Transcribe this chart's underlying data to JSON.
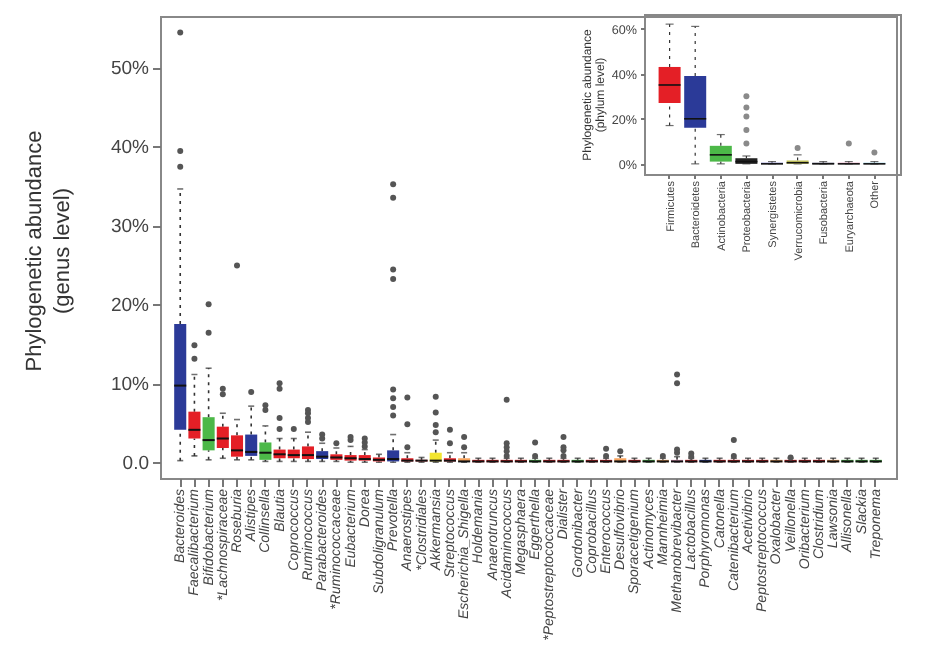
{
  "chart_data": [
    {
      "type": "box",
      "ylabel": "Phylogenetic abundance\n(genus level)",
      "categories": [
        "Bacteroides",
        "Faecalibacterium",
        "Bifidobacterium",
        "*Lachnospiraceae",
        "Roseburia",
        "Alistipes",
        "Collinsella",
        "Blautia",
        "Coprococcus",
        "Ruminococcus",
        "Parabacteroides",
        "*Ruminococcaceae",
        "Eubacterium",
        "Dorea",
        "Subdoligranulum",
        "Prevotella",
        "Anaerostipes",
        "*Clostridiales",
        "Akkermansia",
        "Streptococcus",
        "Escherichia_Shigella",
        "Holdemania",
        "Anaerotruncus",
        "Acidaminococcus",
        "Megasphaera",
        "Eggerthella",
        "*Peptostreptococcaceae",
        "Dialister",
        "Gordonibacter",
        "Coprobacillus",
        "Enterococcus",
        "Desulfovibrio",
        "Sporacetigenium",
        "Actinomyces",
        "Mannheimia",
        "Methanobrevibacter",
        "Lactobacillus",
        "Porphyromonas",
        "Catonella",
        "Catenibacterium",
        "Acetivibrio",
        "Peptostreptococcus",
        "Oxalobacter",
        "Veillonella",
        "Oribacterium",
        "Clostridium",
        "Lawsonia",
        "Allisonella",
        "Slackia",
        "Treponema"
      ],
      "colors": [
        "#2b3a98",
        "#e41f26",
        "#4cb848",
        "#e41f26",
        "#e41f26",
        "#2b3a98",
        "#4cb848",
        "#e41f26",
        "#e41f26",
        "#e41f26",
        "#2b3a98",
        "#e41f26",
        "#e41f26",
        "#e41f26",
        "#e41f26",
        "#2b3a98",
        "#e41f26",
        "#e41f26",
        "#f2e52e",
        "#e41f26",
        "#f7a35c",
        "#e41f26",
        "#e41f26",
        "#e41f26",
        "#e41f26",
        "#4cb848",
        "#e41f26",
        "#e41f26",
        "#4cb848",
        "#e41f26",
        "#e41f26",
        "#f7a35c",
        "#e41f26",
        "#4cb848",
        "#f7a35c",
        "#f2a0c4",
        "#e41f26",
        "#2b3a98",
        "#e41f26",
        "#e41f26",
        "#e41f26",
        "#e41f26",
        "#f7a35c",
        "#e41f26",
        "#e41f26",
        "#e41f26",
        "#f7a35c",
        "#4cb848",
        "#4cb848",
        "#4cb848"
      ],
      "boxes": [
        {
          "low": 0.2,
          "q1": 4.1,
          "median": 9.7,
          "q3": 17.5,
          "high": 34.6,
          "outliers": [
            37.4,
            39.4,
            54.4
          ]
        },
        {
          "low": 0.8,
          "q1": 3.0,
          "median": 4.1,
          "q3": 6.4,
          "high": 11.1,
          "outliers": [
            13.1,
            14.8
          ]
        },
        {
          "low": 0.3,
          "q1": 1.5,
          "median": 2.8,
          "q3": 5.7,
          "high": 11.9,
          "outliers": [
            16.4,
            20.0
          ]
        },
        {
          "low": 0.5,
          "q1": 1.8,
          "median": 3.0,
          "q3": 4.5,
          "high": 6.2,
          "outliers": [
            8.6,
            9.3
          ]
        },
        {
          "low": 0.3,
          "q1": 0.7,
          "median": 1.5,
          "q3": 3.4,
          "high": 5.4,
          "outliers": [
            24.9
          ]
        },
        {
          "low": 0.3,
          "q1": 0.8,
          "median": 1.3,
          "q3": 3.5,
          "high": 7.1,
          "outliers": [
            8.9
          ]
        },
        {
          "low": 0.1,
          "q1": 0.3,
          "median": 1.2,
          "q3": 2.5,
          "high": 4.6,
          "outliers": [
            6.6,
            7.2
          ]
        },
        {
          "low": 0.1,
          "q1": 0.5,
          "median": 1.0,
          "q3": 1.6,
          "high": 3.0,
          "outliers": [
            4.2,
            5.6,
            9.3,
            10.0
          ]
        },
        {
          "low": 0.1,
          "q1": 0.5,
          "median": 0.9,
          "q3": 1.6,
          "high": 3.0,
          "outliers": [
            4.2
          ]
        },
        {
          "low": 0.1,
          "q1": 0.4,
          "median": 0.9,
          "q3": 2.0,
          "high": 3.8,
          "outliers": [
            5.1,
            5.6,
            6.2,
            6.6
          ]
        },
        {
          "low": 0.1,
          "q1": 0.4,
          "median": 0.7,
          "q3": 1.4,
          "high": 2.4,
          "outliers": [
            3.0,
            3.5
          ]
        },
        {
          "low": 0.1,
          "q1": 0.3,
          "median": 0.6,
          "q3": 1.0,
          "high": 1.8,
          "outliers": [
            2.4
          ]
        },
        {
          "low": 0,
          "q1": 0.2,
          "median": 0.5,
          "q3": 0.9,
          "high": 2.0,
          "outliers": [
            2.8,
            3.2
          ]
        },
        {
          "low": 0,
          "q1": 0.2,
          "median": 0.4,
          "q3": 0.9,
          "high": 1.6,
          "outliers": [
            2.0,
            2.5,
            3.0
          ]
        },
        {
          "low": 0,
          "q1": 0.1,
          "median": 0.3,
          "q3": 0.6,
          "high": 1.0
        },
        {
          "low": 0,
          "q1": 0.1,
          "median": 0.4,
          "q3": 1.5,
          "high": 3.5,
          "outliers": [
            5.9,
            7.0,
            8.1,
            9.2,
            23.2,
            24.4,
            33.5,
            35.2
          ]
        },
        {
          "low": 0,
          "q1": 0.1,
          "median": 0.2,
          "q3": 0.5,
          "high": 1.2,
          "outliers": [
            1.9,
            4.8,
            8.2
          ]
        },
        {
          "low": 0,
          "q1": 0.1,
          "median": 0.2,
          "q3": 0.3,
          "high": 0.6
        },
        {
          "low": 0,
          "q1": 0.1,
          "median": 0.2,
          "q3": 1.2,
          "high": 2.8,
          "outliers": [
            3.8,
            4.7,
            6.3,
            8.3
          ]
        },
        {
          "low": 0,
          "q1": 0.1,
          "median": 0.2,
          "q3": 0.5,
          "high": 1.2,
          "outliers": [
            2.4,
            4.1
          ]
        },
        {
          "low": 0,
          "q1": 0.1,
          "median": 0.1,
          "q3": 0.5,
          "high": 1.2,
          "outliers": [
            1.9,
            3.2
          ]
        },
        {
          "low": 0,
          "q1": 0,
          "median": 0.1,
          "q3": 0.3,
          "high": 0.5
        },
        {
          "low": 0,
          "q1": 0,
          "median": 0.1,
          "q3": 0.3,
          "high": 0.5
        },
        {
          "low": 0,
          "q1": 0,
          "median": 0.1,
          "q3": 0.3,
          "high": 0.5,
          "outliers": [
            0.8,
            1.4,
            1.9,
            2.4,
            7.9
          ]
        },
        {
          "low": 0,
          "q1": 0,
          "median": 0.1,
          "q3": 0.3,
          "high": 0.5
        },
        {
          "low": 0,
          "q1": 0,
          "median": 0.1,
          "q3": 0.3,
          "high": 0.5,
          "outliers": [
            0.8,
            2.5
          ]
        },
        {
          "low": 0,
          "q1": 0,
          "median": 0.1,
          "q3": 0.3,
          "high": 0.5
        },
        {
          "low": 0,
          "q1": 0,
          "median": 0.1,
          "q3": 0.3,
          "high": 0.5,
          "outliers": [
            0.8,
            1.5,
            1.9,
            3.2
          ]
        },
        {
          "low": 0,
          "q1": 0,
          "median": 0.1,
          "q3": 0.3,
          "high": 0.5
        },
        {
          "low": 0,
          "q1": 0,
          "median": 0.1,
          "q3": 0.3,
          "high": 0.5
        },
        {
          "low": 0,
          "q1": 0,
          "median": 0.1,
          "q3": 0.3,
          "high": 0.5,
          "outliers": [
            0.8,
            1.7
          ]
        },
        {
          "low": 0,
          "q1": 0,
          "median": 0.1,
          "q3": 0.5,
          "high": 0.8,
          "outliers": [
            1.4
          ]
        },
        {
          "low": 0,
          "q1": 0,
          "median": 0.1,
          "q3": 0.3,
          "high": 0.5
        },
        {
          "low": 0,
          "q1": 0,
          "median": 0.1,
          "q3": 0.3,
          "high": 0.5
        },
        {
          "low": 0,
          "q1": 0,
          "median": 0.1,
          "q3": 0.3,
          "high": 0.5,
          "outliers": [
            0.8
          ]
        },
        {
          "low": 0,
          "q1": 0,
          "median": 0.1,
          "q3": 0.3,
          "high": 0.7,
          "outliers": [
            1.2,
            1.6,
            10.0,
            11.1
          ]
        },
        {
          "low": 0,
          "q1": 0,
          "median": 0.1,
          "q3": 0.3,
          "high": 0.5,
          "outliers": [
            0.7,
            1.1
          ]
        },
        {
          "low": 0,
          "q1": 0,
          "median": 0.1,
          "q3": 0.3,
          "high": 0.5
        },
        {
          "low": 0,
          "q1": 0,
          "median": 0.1,
          "q3": 0.3,
          "high": 0.5
        },
        {
          "low": 0,
          "q1": 0,
          "median": 0.1,
          "q3": 0.3,
          "high": 0.5,
          "outliers": [
            0.8,
            2.8
          ]
        },
        {
          "low": 0,
          "q1": 0,
          "median": 0.1,
          "q3": 0.3,
          "high": 0.5
        },
        {
          "low": 0,
          "q1": 0,
          "median": 0.1,
          "q3": 0.3,
          "high": 0.5
        },
        {
          "low": 0,
          "q1": 0,
          "median": 0.1,
          "q3": 0.3,
          "high": 0.5
        },
        {
          "low": 0,
          "q1": 0,
          "median": 0.1,
          "q3": 0.3,
          "high": 0.5,
          "outliers": [
            0.6
          ]
        },
        {
          "low": 0,
          "q1": 0,
          "median": 0.1,
          "q3": 0.3,
          "high": 0.5
        },
        {
          "low": 0,
          "q1": 0,
          "median": 0.1,
          "q3": 0.3,
          "high": 0.5
        },
        {
          "low": 0,
          "q1": 0,
          "median": 0.1,
          "q3": 0.3,
          "high": 0.5
        },
        {
          "low": 0,
          "q1": 0,
          "median": 0.1,
          "q3": 0.3,
          "high": 0.5
        },
        {
          "low": 0,
          "q1": 0,
          "median": 0.1,
          "q3": 0.3,
          "high": 0.5
        },
        {
          "low": 0,
          "q1": 0,
          "median": 0.1,
          "q3": 0.3,
          "high": 0.5
        }
      ],
      "ylim": [
        -2,
        56.5
      ],
      "yticks": [
        {
          "value": 0,
          "label": "0.0"
        },
        {
          "value": 10,
          "label": "10%"
        },
        {
          "value": 20,
          "label": "20%"
        },
        {
          "value": 30,
          "label": "30%"
        },
        {
          "value": 40,
          "label": "40%"
        },
        {
          "value": 50,
          "label": "50%"
        }
      ]
    },
    {
      "type": "box",
      "ylabel": "Phylogenetic abundance\n(phylum level)",
      "categories": [
        "Firmicutes",
        "Bacteroidetes",
        "Actinobacteria",
        "Proteobacteria",
        "Synergistetes",
        "Verrucomicrobia",
        "Fusobacteria",
        "Euryarchaeota",
        "Other"
      ],
      "colors": [
        "#e41f26",
        "#2b3a98",
        "#4cb848",
        "#222222",
        "#5b5bbd",
        "#c4c45a",
        "#3a3a5a",
        "#e27fae",
        "#7fc6e6"
      ],
      "boxes": [
        {
          "low": 17,
          "q1": 27,
          "median": 35,
          "q3": 43,
          "high": 62
        },
        {
          "low": 0,
          "q1": 16,
          "median": 20,
          "q3": 39,
          "high": 61
        },
        {
          "low": 0,
          "q1": 1,
          "median": 4,
          "q3": 8,
          "high": 13
        },
        {
          "low": 0,
          "q1": 0,
          "median": 1,
          "q3": 2.5,
          "high": 3.5,
          "outliers": [
            9,
            15,
            21,
            25,
            30
          ]
        },
        {
          "low": 0,
          "q1": 0,
          "median": 0,
          "q3": 0.5,
          "high": 1
        },
        {
          "low": 0,
          "q1": 0,
          "median": 0.5,
          "q3": 1.5,
          "high": 4,
          "outliers": [
            7
          ]
        },
        {
          "low": 0,
          "q1": 0,
          "median": 0,
          "q3": 0.5,
          "high": 1
        },
        {
          "low": 0,
          "q1": 0,
          "median": 0,
          "q3": 0.5,
          "high": 1,
          "outliers": [
            9
          ]
        },
        {
          "low": 0,
          "q1": 0,
          "median": 0,
          "q3": 0.5,
          "high": 1,
          "outliers": [
            5
          ]
        }
      ],
      "ylim": [
        -4.5,
        66.5
      ],
      "yticks": [
        {
          "value": 0,
          "label": "0%"
        },
        {
          "value": 20,
          "label": "20%"
        },
        {
          "value": 40,
          "label": "40%"
        },
        {
          "value": 60,
          "label": "60%"
        }
      ]
    }
  ]
}
